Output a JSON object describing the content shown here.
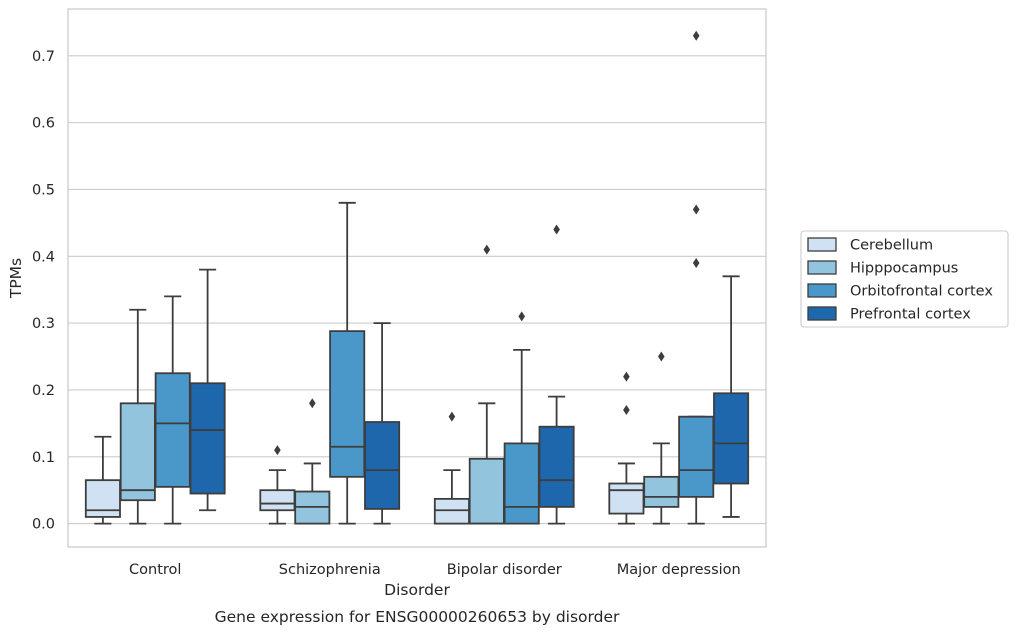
{
  "chart_data": {
    "type": "box",
    "title": "",
    "caption": "Gene expression for ENSG00000260653 by disorder",
    "xlabel": "Disorder",
    "ylabel": "TPMs",
    "ylim": [
      -0.035,
      0.77
    ],
    "yticks": [
      0.0,
      0.1,
      0.2,
      0.3,
      0.4,
      0.5,
      0.6,
      0.7
    ],
    "ytick_labels": [
      "0.0",
      "0.1",
      "0.2",
      "0.3",
      "0.4",
      "0.5",
      "0.6",
      "0.7"
    ],
    "grid": true,
    "legend_position": "right",
    "categories": [
      "Control",
      "Schizophrenia",
      "Bipolar disorder",
      "Major depression"
    ],
    "series": [
      {
        "name": "Cerebellum",
        "color": "#cfe1f2",
        "boxes": [
          {
            "whisker_low": 0.0,
            "q1": 0.01,
            "median": 0.02,
            "q3": 0.065,
            "whisker_high": 0.13,
            "outliers": []
          },
          {
            "whisker_low": 0.0,
            "q1": 0.02,
            "median": 0.03,
            "q3": 0.05,
            "whisker_high": 0.08,
            "outliers": [
              0.11
            ]
          },
          {
            "whisker_low": 0.0,
            "q1": 0.0,
            "median": 0.02,
            "q3": 0.037,
            "whisker_high": 0.08,
            "outliers": [
              0.16
            ]
          },
          {
            "whisker_low": 0.0,
            "q1": 0.015,
            "median": 0.05,
            "q3": 0.06,
            "whisker_high": 0.09,
            "outliers": [
              0.17,
              0.22
            ]
          }
        ]
      },
      {
        "name": "Hipppocampus",
        "color": "#93c4de",
        "boxes": [
          {
            "whisker_low": 0.0,
            "q1": 0.035,
            "median": 0.05,
            "q3": 0.18,
            "whisker_high": 0.32,
            "outliers": []
          },
          {
            "whisker_low": 0.0,
            "q1": 0.0,
            "median": 0.025,
            "q3": 0.048,
            "whisker_high": 0.09,
            "outliers": [
              0.18
            ]
          },
          {
            "whisker_low": 0.0,
            "q1": 0.0,
            "median": 0.0,
            "q3": 0.097,
            "whisker_high": 0.18,
            "outliers": [
              0.41
            ]
          },
          {
            "whisker_low": 0.0,
            "q1": 0.025,
            "median": 0.04,
            "q3": 0.07,
            "whisker_high": 0.12,
            "outliers": [
              0.25
            ]
          }
        ]
      },
      {
        "name": "Orbitofrontal cortex",
        "color": "#4a98c9",
        "boxes": [
          {
            "whisker_low": 0.0,
            "q1": 0.055,
            "median": 0.15,
            "q3": 0.225,
            "whisker_high": 0.34,
            "outliers": []
          },
          {
            "whisker_low": 0.0,
            "q1": 0.07,
            "median": 0.115,
            "q3": 0.288,
            "whisker_high": 0.48,
            "outliers": []
          },
          {
            "whisker_low": 0.0,
            "q1": 0.0,
            "median": 0.025,
            "q3": 0.12,
            "whisker_high": 0.26,
            "outliers": [
              0.31
            ]
          },
          {
            "whisker_low": 0.0,
            "q1": 0.04,
            "median": 0.08,
            "q3": 0.16,
            "whisker_high": 0.16,
            "outliers": [
              0.39,
              0.47,
              0.73
            ]
          }
        ]
      },
      {
        "name": "Prefrontal cortex",
        "color": "#1f67ac",
        "boxes": [
          {
            "whisker_low": 0.02,
            "q1": 0.045,
            "median": 0.14,
            "q3": 0.21,
            "whisker_high": 0.38,
            "outliers": []
          },
          {
            "whisker_low": 0.0,
            "q1": 0.022,
            "median": 0.08,
            "q3": 0.152,
            "whisker_high": 0.3,
            "outliers": []
          },
          {
            "whisker_low": 0.0,
            "q1": 0.025,
            "median": 0.065,
            "q3": 0.145,
            "whisker_high": 0.19,
            "outliers": [
              0.44
            ]
          },
          {
            "whisker_low": 0.01,
            "q1": 0.06,
            "median": 0.12,
            "q3": 0.195,
            "whisker_high": 0.37,
            "outliers": []
          }
        ]
      }
    ]
  }
}
